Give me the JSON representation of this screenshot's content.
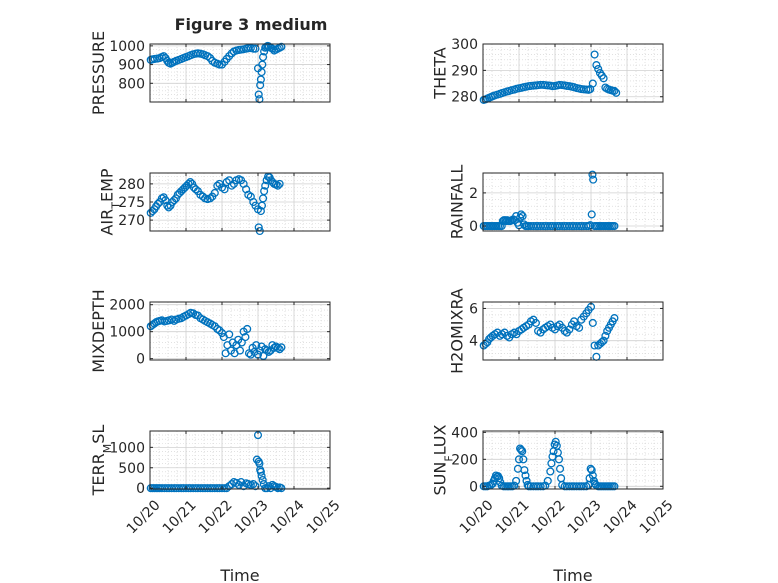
{
  "figure": {
    "title": "Figure 3 medium",
    "marker_color": "#0072bd",
    "axis_color": "#262626",
    "grid_color": "#d0d0d0"
  },
  "chart_data": [
    {
      "type": "scatter",
      "ylabel": "PRESSURE",
      "xlim": [
        0,
        5
      ],
      "ylim": [
        700,
        1010
      ],
      "yticks": [
        800,
        900,
        1000
      ],
      "ytick_labels": [
        "800",
        "900",
        "1000"
      ],
      "show_xtick_labels": false,
      "grid": true,
      "x": [
        0.02,
        0.07,
        0.13,
        0.2,
        0.27,
        0.33,
        0.38,
        0.43,
        0.48,
        0.52,
        0.57,
        0.62,
        0.67,
        0.73,
        0.8,
        0.87,
        0.93,
        1.0,
        1.07,
        1.13,
        1.2,
        1.27,
        1.33,
        1.4,
        1.47,
        1.53,
        1.6,
        1.67,
        1.73,
        1.8,
        1.87,
        1.93,
        2.0,
        2.07,
        2.13,
        2.2,
        2.27,
        2.33,
        2.4,
        2.47,
        2.53,
        2.6,
        2.67,
        2.73,
        2.8,
        2.87,
        2.93,
        3.0,
        3.02,
        3.04,
        3.06,
        3.08,
        3.1,
        3.12,
        3.14,
        3.17,
        3.2,
        3.23,
        3.27,
        3.3,
        3.35,
        3.4,
        3.45,
        3.5,
        3.55,
        3.6,
        3.65
      ],
      "y": [
        925,
        928,
        930,
        932,
        935,
        940,
        945,
        935,
        920,
        910,
        905,
        910,
        915,
        920,
        925,
        930,
        935,
        940,
        945,
        950,
        955,
        958,
        960,
        958,
        955,
        950,
        945,
        935,
        920,
        910,
        905,
        900,
        900,
        915,
        930,
        945,
        960,
        970,
        975,
        978,
        980,
        982,
        985,
        987,
        988,
        985,
        985,
        880,
        740,
        715,
        790,
        820,
        860,
        900,
        940,
        970,
        990,
        995,
        1000,
        997,
        990,
        985,
        975,
        980,
        985,
        990,
        995
      ]
    },
    {
      "type": "scatter",
      "ylabel": "THETA",
      "xlim": [
        0,
        5
      ],
      "ylim": [
        278,
        300
      ],
      "yticks": [
        280,
        290,
        300
      ],
      "ytick_labels": [
        "280",
        "290",
        "300"
      ],
      "show_xtick_labels": false,
      "grid": true,
      "x": [
        0.02,
        0.07,
        0.12,
        0.17,
        0.22,
        0.27,
        0.33,
        0.4,
        0.47,
        0.53,
        0.6,
        0.67,
        0.73,
        0.8,
        0.87,
        0.93,
        1.0,
        1.07,
        1.13,
        1.2,
        1.27,
        1.33,
        1.4,
        1.47,
        1.53,
        1.6,
        1.67,
        1.73,
        1.8,
        1.87,
        1.93,
        2.0,
        2.07,
        2.13,
        2.2,
        2.27,
        2.33,
        2.4,
        2.47,
        2.53,
        2.6,
        2.67,
        2.73,
        2.8,
        2.87,
        2.93,
        2.98,
        3.05,
        3.1,
        3.15,
        3.2,
        3.25,
        3.3,
        3.35,
        3.4,
        3.45,
        3.5,
        3.55,
        3.6,
        3.65,
        3.7
      ],
      "y": [
        278.8,
        279.0,
        279.3,
        279.6,
        279.9,
        280.2,
        280.5,
        280.8,
        281.1,
        281.4,
        281.7,
        282.0,
        282.2,
        282.5,
        282.7,
        283.0,
        283.2,
        283.4,
        283.6,
        283.8,
        284.0,
        284.1,
        284.2,
        284.3,
        284.4,
        284.5,
        284.5,
        284.4,
        284.3,
        284.2,
        284.0,
        284.1,
        284.3,
        284.5,
        284.4,
        284.3,
        284.1,
        284.0,
        283.8,
        283.6,
        283.3,
        283.1,
        282.9,
        282.8,
        282.7,
        282.6,
        282.9,
        285.0,
        296.0,
        292.0,
        290.5,
        289.0,
        288.0,
        287.0,
        283.5,
        283.0,
        282.7,
        282.5,
        282.3,
        282.2,
        281.5
      ]
    },
    {
      "type": "scatter",
      "ylabel": "AIR_TEMP",
      "xlim": [
        0,
        5
      ],
      "ylim": [
        267,
        283
      ],
      "yticks": [
        270,
        275,
        280
      ],
      "ytick_labels": [
        "270",
        "275",
        "280"
      ],
      "show_xtick_labels": false,
      "grid": true,
      "x": [
        0.02,
        0.07,
        0.12,
        0.17,
        0.22,
        0.27,
        0.33,
        0.38,
        0.43,
        0.48,
        0.52,
        0.57,
        0.62,
        0.67,
        0.72,
        0.77,
        0.82,
        0.87,
        0.92,
        0.97,
        1.02,
        1.07,
        1.12,
        1.17,
        1.22,
        1.27,
        1.33,
        1.4,
        1.47,
        1.53,
        1.6,
        1.67,
        1.73,
        1.8,
        1.87,
        1.93,
        2.0,
        2.07,
        2.13,
        2.2,
        2.27,
        2.33,
        2.4,
        2.47,
        2.53,
        2.6,
        2.67,
        2.73,
        2.8,
        2.87,
        2.93,
        3.0,
        3.02,
        3.05,
        3.08,
        3.11,
        3.14,
        3.17,
        3.2,
        3.24,
        3.28,
        3.32,
        3.36,
        3.4,
        3.45,
        3.5,
        3.55,
        3.6
      ],
      "y": [
        272.0,
        272.5,
        273.0,
        273.8,
        274.5,
        275.0,
        276.0,
        276.3,
        275.5,
        274.0,
        273.5,
        274.0,
        275.0,
        275.5,
        276.0,
        277.0,
        277.5,
        278.0,
        278.5,
        279.0,
        279.5,
        280.0,
        280.5,
        280.0,
        279.0,
        278.5,
        278.0,
        277.0,
        276.5,
        276.0,
        275.8,
        276.0,
        276.5,
        277.5,
        279.5,
        280.0,
        279.0,
        278.5,
        280.5,
        281.0,
        279.5,
        280.0,
        281.0,
        281.3,
        281.0,
        280.0,
        278.5,
        277.0,
        276.5,
        275.0,
        274.0,
        273.0,
        268.0,
        267.0,
        272.5,
        274.0,
        276.0,
        278.0,
        279.5,
        281.0,
        282.0,
        281.8,
        281.0,
        280.5,
        280.0,
        279.8,
        279.5,
        280.0
      ]
    },
    {
      "type": "scatter",
      "ylabel": "RAINFALL",
      "xlim": [
        0,
        5
      ],
      "ylim": [
        -0.3,
        3.2
      ],
      "yticks": [
        0,
        2
      ],
      "ytick_labels": [
        "0",
        "2"
      ],
      "show_xtick_labels": false,
      "grid": true,
      "x": [
        0.02,
        0.07,
        0.12,
        0.17,
        0.22,
        0.27,
        0.32,
        0.37,
        0.42,
        0.47,
        0.52,
        0.55,
        0.58,
        0.62,
        0.65,
        0.68,
        0.72,
        0.76,
        0.8,
        0.84,
        0.88,
        0.92,
        0.96,
        1.0,
        1.03,
        1.06,
        1.1,
        1.14,
        1.18,
        1.22,
        1.27,
        1.33,
        1.4,
        1.47,
        1.53,
        1.6,
        1.67,
        1.73,
        1.8,
        1.87,
        1.93,
        2.0,
        2.07,
        2.13,
        2.2,
        2.27,
        2.33,
        2.4,
        2.47,
        2.53,
        2.6,
        2.67,
        2.73,
        2.8,
        2.87,
        2.93,
        2.98,
        3.02,
        3.04,
        3.06,
        3.1,
        3.15,
        3.2,
        3.25,
        3.3,
        3.35,
        3.4,
        3.45,
        3.5,
        3.55,
        3.6,
        3.65
      ],
      "y": [
        0,
        0,
        0,
        0,
        0,
        0,
        0,
        0,
        0,
        0,
        0,
        0.3,
        0.35,
        0.35,
        0.3,
        0.35,
        0.3,
        0.3,
        0.35,
        0.4,
        0.35,
        0.6,
        0.2,
        0.05,
        0.5,
        0.7,
        0.6,
        0.1,
        0,
        0,
        0,
        0,
        0,
        0,
        0,
        0,
        0,
        0,
        0,
        0,
        0,
        0,
        0,
        0,
        0,
        0,
        0,
        0,
        0,
        0,
        0,
        0,
        0,
        0,
        0,
        0,
        0.05,
        0.7,
        3.1,
        2.8,
        0,
        0,
        0,
        0,
        0,
        0,
        0,
        0,
        0,
        0,
        0,
        0
      ]
    },
    {
      "type": "scatter",
      "ylabel": "MIXDEPTH",
      "xlim": [
        0,
        5
      ],
      "ylim": [
        -50,
        2100
      ],
      "yticks": [
        0,
        1000,
        2000
      ],
      "ytick_labels": [
        "0",
        "1000",
        "2000"
      ],
      "show_xtick_labels": false,
      "grid": true,
      "x": [
        0.02,
        0.07,
        0.12,
        0.17,
        0.22,
        0.27,
        0.33,
        0.4,
        0.47,
        0.53,
        0.6,
        0.67,
        0.73,
        0.8,
        0.87,
        0.93,
        1.0,
        1.07,
        1.13,
        1.2,
        1.27,
        1.33,
        1.4,
        1.47,
        1.53,
        1.6,
        1.67,
        1.73,
        1.8,
        1.87,
        1.93,
        2.0,
        2.05,
        2.1,
        2.15,
        2.2,
        2.25,
        2.3,
        2.35,
        2.4,
        2.45,
        2.5,
        2.55,
        2.6,
        2.65,
        2.7,
        2.75,
        2.8,
        2.85,
        2.9,
        2.95,
        3.0,
        3.05,
        3.1,
        3.15,
        3.2,
        3.25,
        3.3,
        3.35,
        3.4,
        3.45,
        3.5,
        3.55,
        3.6,
        3.65
      ],
      "y": [
        1200,
        1250,
        1300,
        1350,
        1380,
        1400,
        1420,
        1380,
        1400,
        1420,
        1450,
        1400,
        1450,
        1480,
        1500,
        1550,
        1600,
        1650,
        1700,
        1680,
        1620,
        1600,
        1500,
        1450,
        1400,
        1350,
        1300,
        1250,
        1200,
        1100,
        1050,
        950,
        800,
        200,
        500,
        900,
        300,
        600,
        200,
        500,
        700,
        300,
        600,
        1000,
        800,
        1100,
        200,
        150,
        400,
        250,
        500,
        150,
        300,
        450,
        100,
        350,
        300,
        250,
        300,
        500,
        400,
        450,
        400,
        350,
        420
      ]
    },
    {
      "type": "scatter",
      "ylabel": "H2OMIXRA",
      "xlim": [
        0,
        5
      ],
      "ylim": [
        2.8,
        6.4
      ],
      "yticks": [
        4,
        6
      ],
      "ytick_labels": [
        "4",
        "6"
      ],
      "show_xtick_labels": false,
      "grid": true,
      "x": [
        0.02,
        0.07,
        0.12,
        0.17,
        0.22,
        0.27,
        0.33,
        0.4,
        0.47,
        0.53,
        0.6,
        0.67,
        0.73,
        0.8,
        0.87,
        0.93,
        1.0,
        1.07,
        1.13,
        1.2,
        1.27,
        1.33,
        1.4,
        1.47,
        1.53,
        1.6,
        1.67,
        1.73,
        1.8,
        1.87,
        1.93,
        2.0,
        2.07,
        2.13,
        2.2,
        2.27,
        2.33,
        2.4,
        2.47,
        2.53,
        2.6,
        2.67,
        2.73,
        2.8,
        2.87,
        2.93,
        3.0,
        3.05,
        3.1,
        3.15,
        3.2,
        3.25,
        3.3,
        3.35,
        3.4,
        3.45,
        3.5,
        3.55,
        3.6,
        3.65
      ],
      "y": [
        3.7,
        3.8,
        3.9,
        4.1,
        4.2,
        4.3,
        4.4,
        4.5,
        4.3,
        4.4,
        4.5,
        4.3,
        4.2,
        4.4,
        4.5,
        4.4,
        4.6,
        4.7,
        4.8,
        4.9,
        5.0,
        5.2,
        5.3,
        5.1,
        4.6,
        4.5,
        4.7,
        4.8,
        4.9,
        5.0,
        4.8,
        4.7,
        4.9,
        5.0,
        4.8,
        4.6,
        4.5,
        4.7,
        5.0,
        5.2,
        4.9,
        4.8,
        5.3,
        5.5,
        5.7,
        5.9,
        6.1,
        5.1,
        3.7,
        3.0,
        3.7,
        3.8,
        3.9,
        4.0,
        4.3,
        4.6,
        4.8,
        5.0,
        5.2,
        5.4
      ]
    },
    {
      "type": "scatter",
      "ylabel": "TERR_MSL",
      "xlim": [
        0,
        5
      ],
      "ylim": [
        -20,
        1400
      ],
      "yticks": [
        0,
        500,
        1000
      ],
      "ytick_labels": [
        "0",
        "500",
        "1000"
      ],
      "show_xtick_labels": true,
      "xticks": [
        0,
        1,
        2,
        3,
        4,
        5
      ],
      "xtick_labels": [
        "10/20",
        "10/21",
        "10/22",
        "10/23",
        "10/24",
        "10/25"
      ],
      "xlabel": "Time",
      "grid": true,
      "x": [
        0.02,
        0.07,
        0.12,
        0.17,
        0.22,
        0.27,
        0.33,
        0.4,
        0.47,
        0.53,
        0.6,
        0.67,
        0.73,
        0.8,
        0.87,
        0.93,
        1.0,
        1.07,
        1.13,
        1.2,
        1.27,
        1.33,
        1.4,
        1.47,
        1.53,
        1.6,
        1.67,
        1.73,
        1.8,
        1.87,
        1.93,
        2.0,
        2.07,
        2.13,
        2.2,
        2.27,
        2.33,
        2.4,
        2.47,
        2.53,
        2.6,
        2.67,
        2.73,
        2.8,
        2.87,
        2.93,
        2.97,
        3.0,
        3.02,
        3.04,
        3.06,
        3.08,
        3.1,
        3.13,
        3.16,
        3.2,
        3.25,
        3.3,
        3.35,
        3.4,
        3.45,
        3.5,
        3.55,
        3.6,
        3.65
      ],
      "y": [
        0,
        0,
        0,
        0,
        0,
        0,
        0,
        0,
        0,
        0,
        0,
        0,
        0,
        0,
        0,
        0,
        0,
        0,
        0,
        0,
        0,
        0,
        0,
        0,
        0,
        0,
        0,
        0,
        0,
        0,
        0,
        0,
        0,
        0,
        50,
        100,
        150,
        130,
        80,
        150,
        50,
        120,
        100,
        80,
        100,
        50,
        700,
        1300,
        650,
        600,
        450,
        400,
        300,
        200,
        100,
        0,
        0,
        50,
        0,
        80,
        50,
        30,
        0,
        20,
        0
      ]
    },
    {
      "type": "scatter",
      "ylabel": "SUN_FLUX",
      "xlim": [
        0,
        5
      ],
      "ylim": [
        -20,
        410
      ],
      "yticks": [
        0,
        200,
        400
      ],
      "ytick_labels": [
        "0",
        "200",
        "400"
      ],
      "show_xtick_labels": true,
      "xticks": [
        0,
        1,
        2,
        3,
        4,
        5
      ],
      "xtick_labels": [
        "10/20",
        "10/21",
        "10/22",
        "10/23",
        "10/24",
        "10/25"
      ],
      "xlabel": "Time",
      "grid": true,
      "x": [
        0.02,
        0.07,
        0.12,
        0.17,
        0.22,
        0.27,
        0.3,
        0.33,
        0.36,
        0.39,
        0.42,
        0.45,
        0.48,
        0.52,
        0.57,
        0.62,
        0.67,
        0.72,
        0.77,
        0.82,
        0.87,
        0.92,
        0.97,
        1.0,
        1.03,
        1.06,
        1.09,
        1.12,
        1.15,
        1.18,
        1.21,
        1.24,
        1.27,
        1.33,
        1.4,
        1.47,
        1.53,
        1.6,
        1.67,
        1.73,
        1.8,
        1.87,
        1.9,
        1.93,
        1.96,
        1.99,
        2.02,
        2.05,
        2.08,
        2.11,
        2.14,
        2.17,
        2.2,
        2.27,
        2.33,
        2.4,
        2.47,
        2.53,
        2.6,
        2.67,
        2.73,
        2.8,
        2.87,
        2.93,
        2.96,
        2.99,
        3.02,
        3.05,
        3.08,
        3.11,
        3.14,
        3.2,
        3.25,
        3.3,
        3.35,
        3.4,
        3.45,
        3.5,
        3.55,
        3.6,
        3.65
      ],
      "y": [
        0,
        0,
        0,
        5,
        10,
        20,
        40,
        60,
        80,
        70,
        75,
        60,
        30,
        5,
        0,
        0,
        0,
        0,
        0,
        0,
        5,
        40,
        130,
        200,
        280,
        270,
        260,
        200,
        120,
        80,
        40,
        10,
        0,
        0,
        0,
        0,
        0,
        0,
        0,
        5,
        40,
        110,
        170,
        220,
        260,
        310,
        330,
        300,
        250,
        200,
        130,
        60,
        10,
        0,
        0,
        0,
        0,
        0,
        0,
        0,
        0,
        0,
        0,
        10,
        60,
        130,
        120,
        80,
        40,
        20,
        10,
        0,
        0,
        0,
        0,
        0,
        0,
        0,
        0,
        0,
        0
      ]
    }
  ]
}
